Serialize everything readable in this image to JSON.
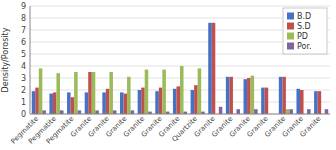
{
  "chart_data": {
    "type": "bar",
    "categories": [
      "Pegmatite",
      "Pegmatite",
      "Pegmatite",
      "Granite",
      "Granite",
      "Granite",
      "Granite",
      "Granite",
      "Granite",
      "Quartzite",
      "Granite",
      "Granite",
      "Granite",
      "Granite",
      "Granite",
      "Granite",
      "Granite"
    ],
    "series": [
      {
        "name": "B.D",
        "color": "#4472C4",
        "values": [
          1.9,
          1.7,
          1.8,
          1.8,
          1.8,
          1.8,
          2.0,
          1.9,
          2.1,
          2.0,
          7.6,
          3.1,
          2.9,
          2.2,
          3.1,
          2.1,
          1.9
        ]
      },
      {
        "name": "S.D",
        "color": "#C0504D",
        "values": [
          2.2,
          1.8,
          1.4,
          3.5,
          2.1,
          1.7,
          2.2,
          2.2,
          2.3,
          2.4,
          7.6,
          3.1,
          3.0,
          2.2,
          3.1,
          2.0,
          1.9
        ]
      },
      {
        "name": "PD",
        "color": "#9BBB59",
        "values": [
          3.8,
          3.4,
          3.5,
          3.5,
          3.5,
          3.1,
          3.7,
          3.7,
          4.0,
          3.8,
          0.0,
          0.0,
          3.2,
          0.0,
          0.4,
          0.0,
          0.0
        ]
      },
      {
        "name": "Por.",
        "color": "#8064A2",
        "values": [
          0.3,
          0.3,
          0.3,
          0.3,
          0.3,
          0.3,
          0.2,
          0.2,
          0.2,
          0.2,
          0.6,
          0.4,
          0.4,
          0.0,
          0.4,
          0.4,
          0.4
        ]
      }
    ],
    "ylabel": "Density/Porosity",
    "ylim": [
      0,
      9
    ],
    "yticks": [
      0,
      1,
      2,
      3,
      4,
      5,
      6,
      7,
      8,
      9
    ],
    "grid": true,
    "legend": "upper right"
  }
}
